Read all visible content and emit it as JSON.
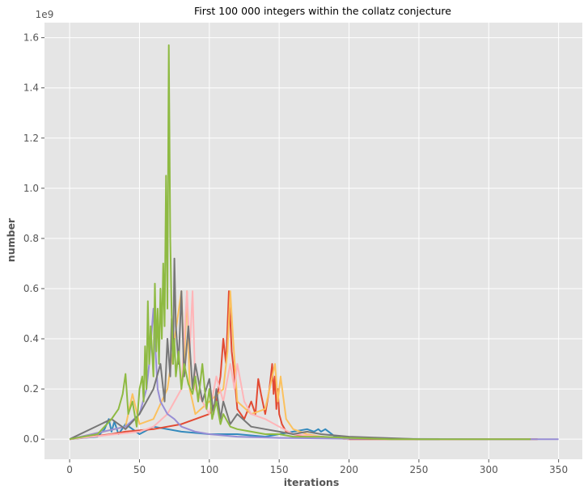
{
  "chart_data": {
    "type": "line",
    "title": "First 100 000 integers within the collatz conjecture",
    "xlabel": "iterations",
    "ylabel": "number",
    "y_offset_label": "1e9",
    "xlim": [
      -18,
      367
    ],
    "ylim": [
      -0.08,
      1.66
    ],
    "x_ticks": [
      0,
      50,
      100,
      150,
      200,
      250,
      300,
      350
    ],
    "y_ticks": [
      0.0,
      0.2,
      0.4,
      0.6,
      0.8,
      1.0,
      1.2,
      1.4,
      1.6
    ],
    "x_tick_labels": [
      "0",
      "50",
      "100",
      "150",
      "200",
      "250",
      "300",
      "350"
    ],
    "y_tick_labels": [
      "0.0",
      "0.2",
      "0.4",
      "0.6",
      "0.8",
      "1.0",
      "1.2",
      "1.4",
      "1.6"
    ],
    "grid": true,
    "style": "ggplot",
    "series": [
      {
        "color": "#348ABD",
        "x": [
          0,
          20,
          25,
          28,
          30,
          32,
          35,
          40,
          50,
          60,
          80,
          100,
          120,
          140,
          160,
          170,
          175,
          178,
          180,
          183,
          190,
          200
        ],
        "y": [
          0.0,
          0.01,
          0.04,
          0.08,
          0.03,
          0.07,
          0.02,
          0.06,
          0.02,
          0.05,
          0.03,
          0.02,
          0.02,
          0.01,
          0.03,
          0.04,
          0.03,
          0.04,
          0.03,
          0.04,
          0.01,
          0.0
        ]
      },
      {
        "color": "#E24A33",
        "x": [
          0,
          30,
          40,
          60,
          80,
          100,
          105,
          108,
          110,
          112,
          113,
          114,
          116,
          118,
          120,
          125,
          130,
          133,
          135,
          137,
          140,
          143,
          145,
          146,
          147,
          148,
          149,
          150,
          152,
          155,
          160,
          170,
          180,
          200,
          250,
          300,
          330,
          335
        ],
        "y": [
          0.0,
          0.02,
          0.03,
          0.04,
          0.06,
          0.1,
          0.15,
          0.25,
          0.4,
          0.3,
          0.45,
          0.59,
          0.35,
          0.25,
          0.12,
          0.08,
          0.15,
          0.1,
          0.24,
          0.18,
          0.1,
          0.2,
          0.3,
          0.18,
          0.25,
          0.12,
          0.2,
          0.1,
          0.06,
          0.03,
          0.02,
          0.01,
          0.01,
          0.0,
          0.0,
          0.0,
          0.0,
          0.0
        ]
      },
      {
        "color": "#FBC15E",
        "x": [
          0,
          40,
          45,
          50,
          60,
          70,
          80,
          82,
          84,
          86,
          90,
          100,
          110,
          113,
          115,
          117,
          120,
          130,
          140,
          147,
          149,
          151,
          155,
          160,
          170,
          180,
          200
        ],
        "y": [
          0.0,
          0.05,
          0.18,
          0.06,
          0.08,
          0.2,
          0.59,
          0.3,
          0.59,
          0.2,
          0.1,
          0.15,
          0.2,
          0.35,
          0.59,
          0.4,
          0.15,
          0.1,
          0.12,
          0.3,
          0.15,
          0.25,
          0.08,
          0.04,
          0.02,
          0.01,
          0.0
        ]
      },
      {
        "color": "#FFB5B8",
        "x": [
          0,
          50,
          60,
          70,
          80,
          84,
          86,
          88,
          90,
          95,
          100,
          105,
          110,
          115,
          118,
          120,
          125,
          130,
          140,
          150,
          160,
          180,
          200
        ],
        "y": [
          0.0,
          0.03,
          0.05,
          0.1,
          0.2,
          0.59,
          0.35,
          0.59,
          0.2,
          0.15,
          0.1,
          0.25,
          0.15,
          0.3,
          0.2,
          0.3,
          0.15,
          0.1,
          0.08,
          0.05,
          0.02,
          0.01,
          0.0
        ]
      },
      {
        "color": "#988ED5",
        "x": [
          0,
          40,
          50,
          55,
          57,
          59,
          60,
          61,
          62,
          63,
          65,
          70,
          75,
          80,
          90,
          100,
          120,
          150,
          200,
          250,
          300,
          350
        ],
        "y": [
          0.0,
          0.05,
          0.1,
          0.2,
          0.3,
          0.45,
          0.52,
          0.4,
          0.3,
          0.2,
          0.15,
          0.1,
          0.08,
          0.05,
          0.03,
          0.02,
          0.01,
          0.005,
          0.002,
          0.001,
          0.0,
          0.0
        ]
      },
      {
        "color": "#777777",
        "x": [
          0,
          30,
          40,
          50,
          60,
          65,
          68,
          70,
          72,
          73,
          74,
          75,
          76,
          78,
          80,
          82,
          85,
          88,
          90,
          95,
          100,
          103,
          105,
          108,
          110,
          115,
          120,
          130,
          140,
          150,
          160,
          170,
          180,
          200,
          250,
          265
        ],
        "y": [
          0.0,
          0.08,
          0.04,
          0.1,
          0.2,
          0.3,
          0.15,
          0.4,
          0.25,
          0.48,
          0.3,
          0.72,
          0.45,
          0.3,
          0.59,
          0.25,
          0.45,
          0.2,
          0.3,
          0.15,
          0.24,
          0.1,
          0.2,
          0.08,
          0.15,
          0.06,
          0.1,
          0.05,
          0.04,
          0.03,
          0.02,
          0.03,
          0.02,
          0.01,
          0.0,
          0.0
        ]
      },
      {
        "color": "#8EBA42",
        "x": [
          0,
          20,
          30,
          35,
          38,
          40,
          42,
          45,
          48,
          50,
          52,
          53,
          54,
          55,
          56,
          57,
          58,
          60,
          61,
          62,
          63,
          64,
          65,
          66,
          67,
          68,
          69,
          70,
          71,
          72,
          73,
          74,
          75,
          76,
          78,
          80,
          82,
          85,
          88,
          90,
          92,
          95,
          98,
          100,
          102,
          105,
          108,
          110,
          115,
          120,
          130,
          140,
          150,
          160,
          180,
          200,
          230,
          250,
          300,
          330
        ],
        "y": [
          0.0,
          0.02,
          0.08,
          0.12,
          0.18,
          0.26,
          0.1,
          0.15,
          0.05,
          0.2,
          0.25,
          0.15,
          0.37,
          0.2,
          0.55,
          0.3,
          0.45,
          0.25,
          0.62,
          0.35,
          0.52,
          0.3,
          0.6,
          0.4,
          0.7,
          0.45,
          1.05,
          0.52,
          1.57,
          0.8,
          0.5,
          0.3,
          0.4,
          0.25,
          0.35,
          0.2,
          0.3,
          0.22,
          0.18,
          0.25,
          0.15,
          0.3,
          0.12,
          0.2,
          0.08,
          0.15,
          0.06,
          0.1,
          0.05,
          0.04,
          0.03,
          0.02,
          0.02,
          0.01,
          0.01,
          0.005,
          0.0,
          0.0,
          0.0,
          0.0
        ]
      }
    ]
  }
}
